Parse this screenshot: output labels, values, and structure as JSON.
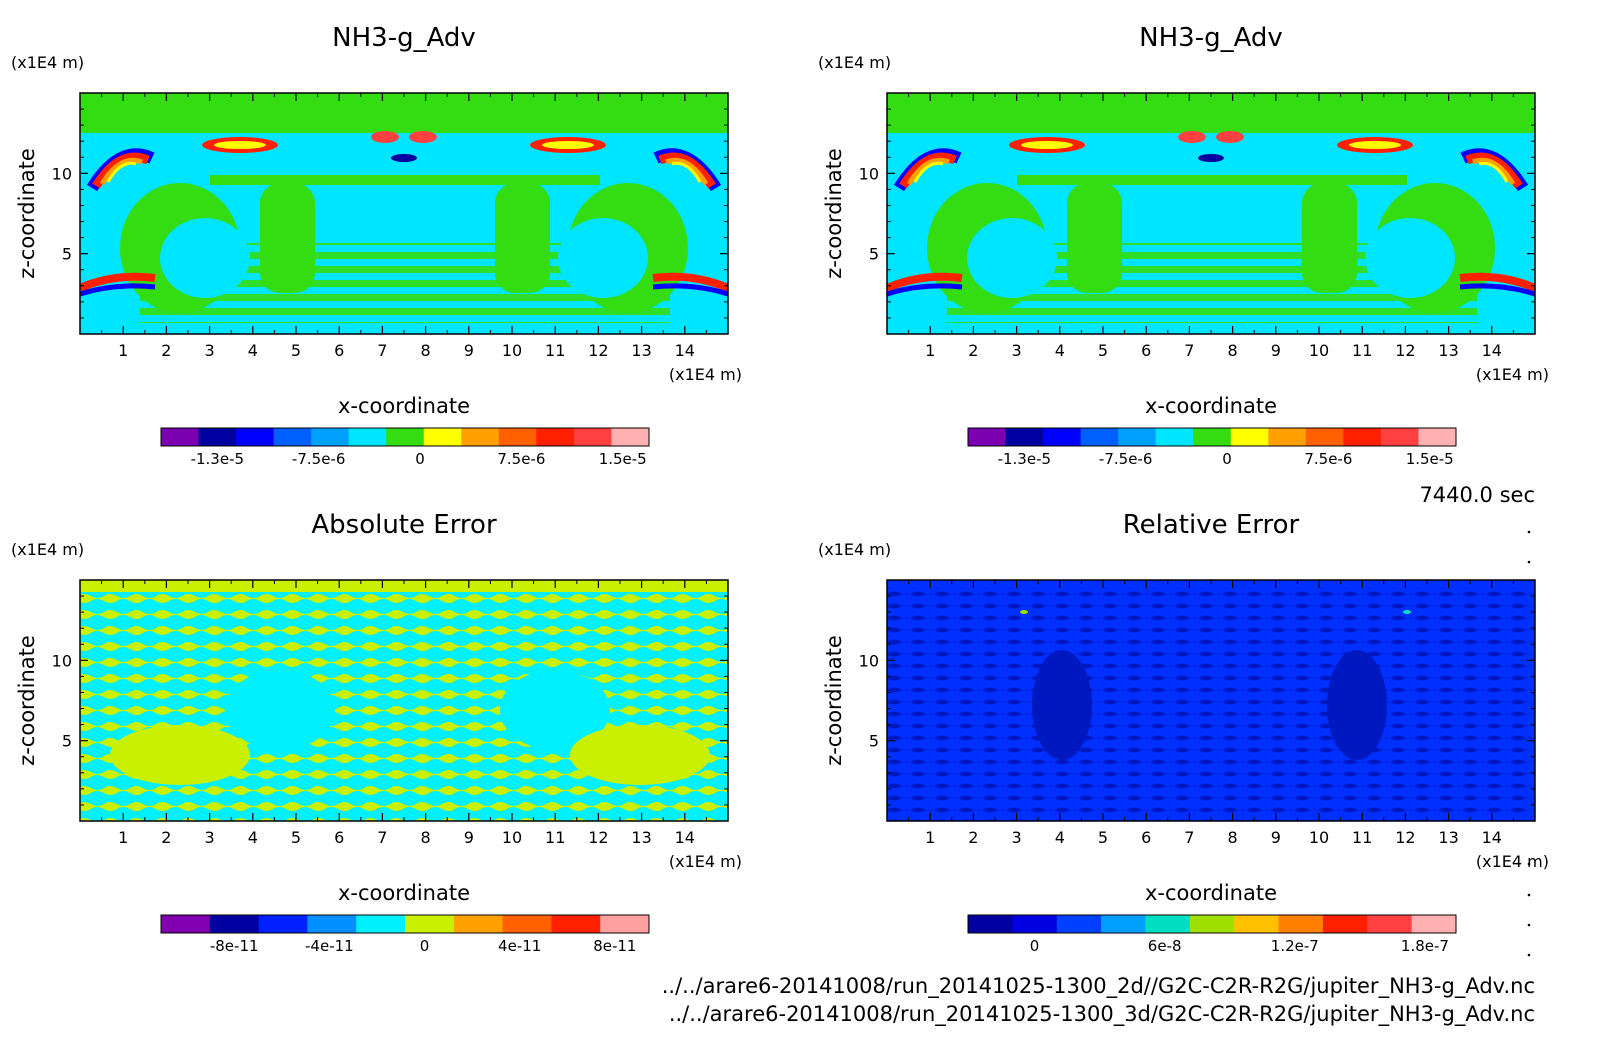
{
  "footer": {
    "time": "7440.0 sec",
    "file1": "../../arare6-20141008/run_20141025-1300_2d//G2C-C2R-R2G/jupiter_NH3-g_Adv.nc",
    "file2": "../../arare6-20141008/run_20141025-1300_3d/G2C-C2R-R2G/jupiter_NH3-g_Adv.nc"
  },
  "chart_data": [
    {
      "type": "heatmap",
      "title": "NH3-g_Adv",
      "xlabel": "x-coordinate",
      "ylabel": "z-coordinate",
      "x_unit": "(x1E4 m)",
      "y_unit": "(x1E4 m)",
      "xlim": [
        0,
        15
      ],
      "ylim": [
        0,
        15
      ],
      "x_ticks": [
        "1",
        "2",
        "3",
        "4",
        "5",
        "6",
        "7",
        "8",
        "9",
        "10",
        "11",
        "12",
        "13",
        "14"
      ],
      "y_ticks": [
        "5",
        "10"
      ],
      "field": "advective tendency pattern",
      "colorbar": {
        "colors": [
          "#7a00b0",
          "#0000a0",
          "#0000ff",
          "#0060ff",
          "#00a0ff",
          "#00e5ff",
          "#33dd11",
          "#ffff00",
          "#ffa000",
          "#ff6000",
          "#ff2000",
          "#ff4040",
          "#ffb0b0"
        ],
        "labels": [
          "-1.3e-5",
          "-7.5e-6",
          "0",
          "7.5e-6",
          "1.5e-5"
        ]
      }
    },
    {
      "type": "heatmap",
      "title": "NH3-g_Adv",
      "xlabel": "x-coordinate",
      "ylabel": "z-coordinate",
      "x_unit": "(x1E4 m)",
      "y_unit": "(x1E4 m)",
      "xlim": [
        0,
        15
      ],
      "ylim": [
        0,
        15
      ],
      "x_ticks": [
        "1",
        "2",
        "3",
        "4",
        "5",
        "6",
        "7",
        "8",
        "9",
        "10",
        "11",
        "12",
        "13",
        "14"
      ],
      "y_ticks": [
        "5",
        "10"
      ],
      "field": "advective tendency pattern",
      "colorbar": {
        "colors": [
          "#7a00b0",
          "#0000a0",
          "#0000ff",
          "#0060ff",
          "#00a0ff",
          "#00e5ff",
          "#33dd11",
          "#ffff00",
          "#ffa000",
          "#ff6000",
          "#ff2000",
          "#ff4040",
          "#ffb0b0"
        ],
        "labels": [
          "-1.3e-5",
          "-7.5e-6",
          "0",
          "7.5e-6",
          "1.5e-5"
        ]
      }
    },
    {
      "type": "heatmap",
      "title": "Absolute Error",
      "xlabel": "x-coordinate",
      "ylabel": "z-coordinate",
      "x_unit": "(x1E4 m)",
      "y_unit": "(x1E4 m)",
      "xlim": [
        0,
        15
      ],
      "ylim": [
        0,
        15
      ],
      "x_ticks": [
        "1",
        "2",
        "3",
        "4",
        "5",
        "6",
        "7",
        "8",
        "9",
        "10",
        "11",
        "12",
        "13",
        "14"
      ],
      "y_ticks": [
        "5",
        "10"
      ],
      "field": "banded two-level error field",
      "colorbar": {
        "colors": [
          "#8000b0",
          "#0000a0",
          "#0020ff",
          "#0090ff",
          "#00f0ff",
          "#c8f000",
          "#ffa000",
          "#ff6000",
          "#ff2000",
          "#ffa0a0"
        ],
        "labels": [
          "-8e-11",
          "-4e-11",
          "0",
          "4e-11",
          "8e-11"
        ]
      }
    },
    {
      "type": "heatmap",
      "title": "Relative Error",
      "xlabel": "x-coordinate",
      "ylabel": "z-coordinate",
      "x_unit": "(x1E4 m)",
      "y_unit": "(x1E4 m)",
      "xlim": [
        0,
        15
      ],
      "ylim": [
        0,
        15
      ],
      "x_ticks": [
        "1",
        "2",
        "3",
        "4",
        "5",
        "6",
        "7",
        "8",
        "9",
        "10",
        "11",
        "12",
        "13",
        "14"
      ],
      "y_ticks": [
        "5",
        "10"
      ],
      "field": "near-zero relative error",
      "colorbar": {
        "colors": [
          "#0000a0",
          "#0000e0",
          "#0040ff",
          "#00a0ff",
          "#00e0c0",
          "#a0e000",
          "#ffc000",
          "#ff8000",
          "#ff2000",
          "#ff4040",
          "#ffb0b0"
        ],
        "labels": [
          "0",
          "6e-8",
          "1.2e-7",
          "1.8e-7"
        ]
      }
    }
  ]
}
